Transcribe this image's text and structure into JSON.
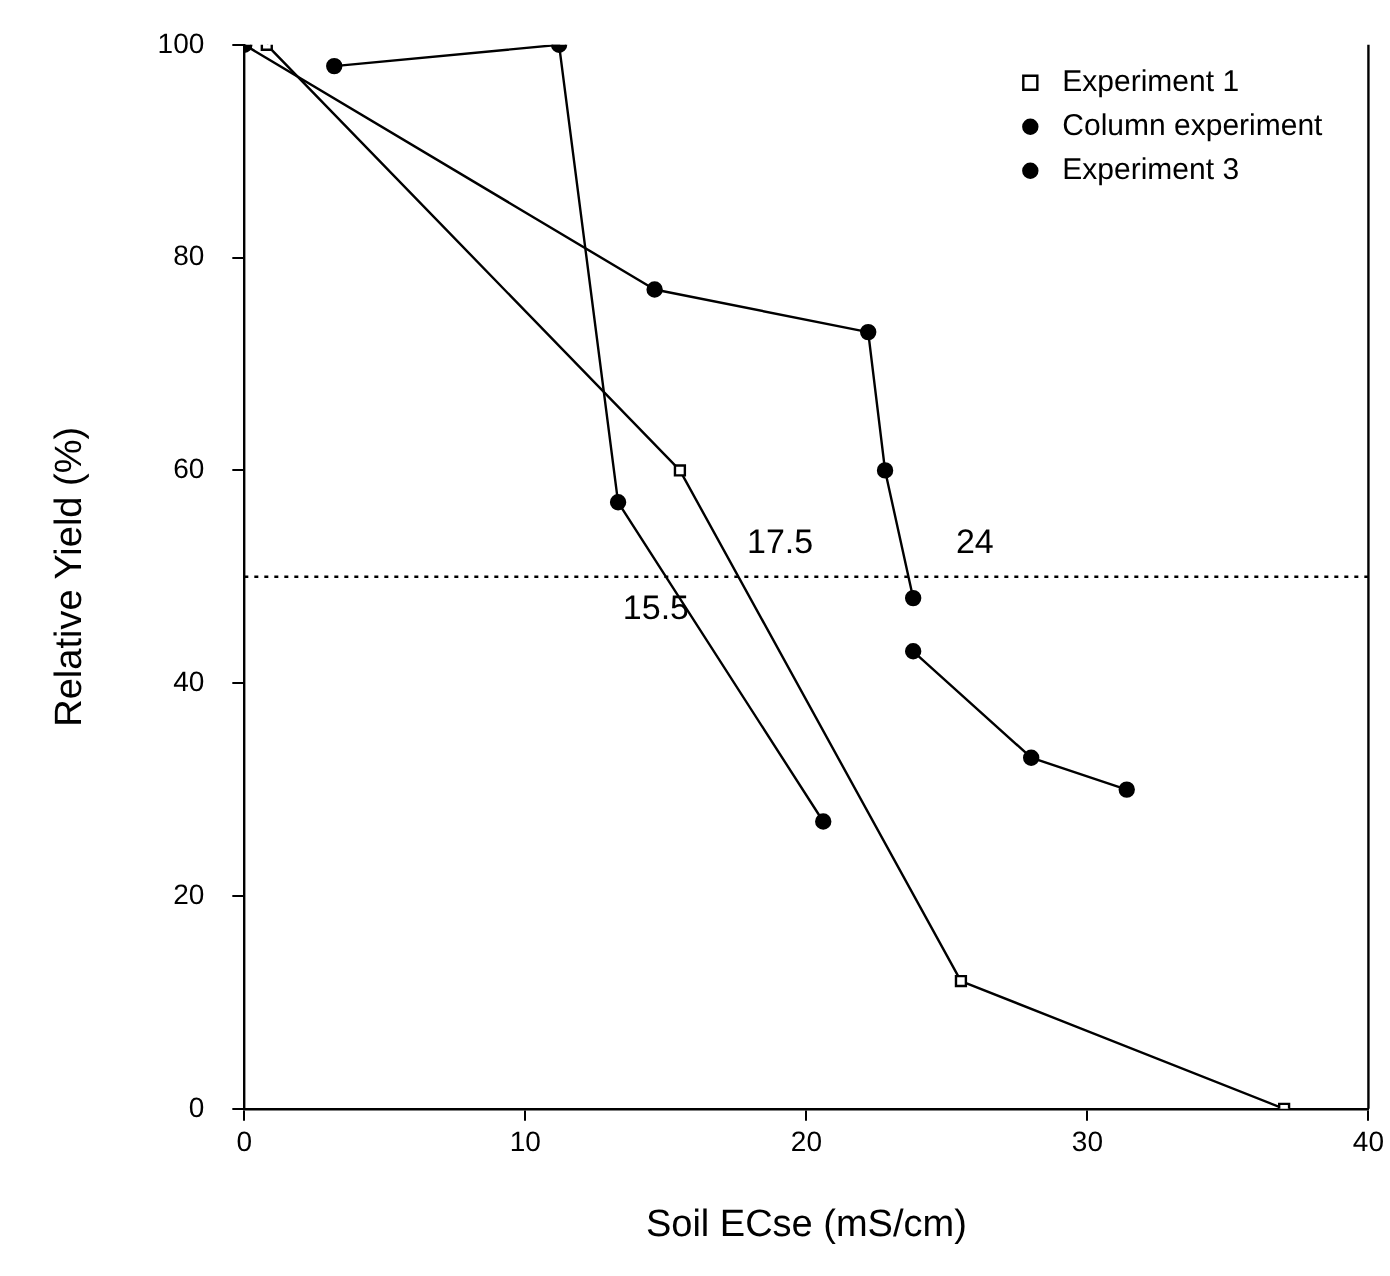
{
  "chart_data": {
    "type": "line",
    "xlabel": "Soil ECse (mS/cm)",
    "ylabel": "Relative Yield (%)",
    "xlim": [
      0,
      40
    ],
    "xticks": [
      0,
      10,
      20,
      30,
      40
    ],
    "ylim": [
      0,
      100
    ],
    "yticks": [
      0,
      20,
      40,
      60,
      80,
      100
    ],
    "grid": false,
    "legend": "top right",
    "line_style": "solid",
    "series": [
      {
        "name": "Experiment 1",
        "color": "#000000",
        "marker": "square",
        "x": [
          0.8,
          15.5,
          25.5,
          37
        ],
        "values": [
          100,
          60,
          12,
          0
        ]
      },
      {
        "name": "Column experiment",
        "color": "#000000",
        "marker": "circle",
        "x": [
          3.2,
          11.2,
          13.3,
          20.6
        ],
        "values": [
          98,
          100,
          57,
          27
        ]
      },
      {
        "name": "Experiment 3",
        "color": "#000000",
        "marker": "circle",
        "x": [
          0,
          14.6,
          22.2,
          22.8,
          23.8,
          null,
          23.8,
          28,
          31.4
        ],
        "values": [
          100,
          77,
          73,
          60,
          48,
          null,
          43,
          33,
          30
        ]
      }
    ],
    "ref_lines": [
      {
        "axis": "y",
        "value": 50,
        "line_style": "dotted"
      }
    ],
    "annotations": [
      {
        "text": "15.5",
        "x": 15.5,
        "y": 50
      },
      {
        "text": "17.5",
        "x": 17.5,
        "y": 50
      },
      {
        "text": "24",
        "x": 24,
        "y": 50
      }
    ]
  }
}
